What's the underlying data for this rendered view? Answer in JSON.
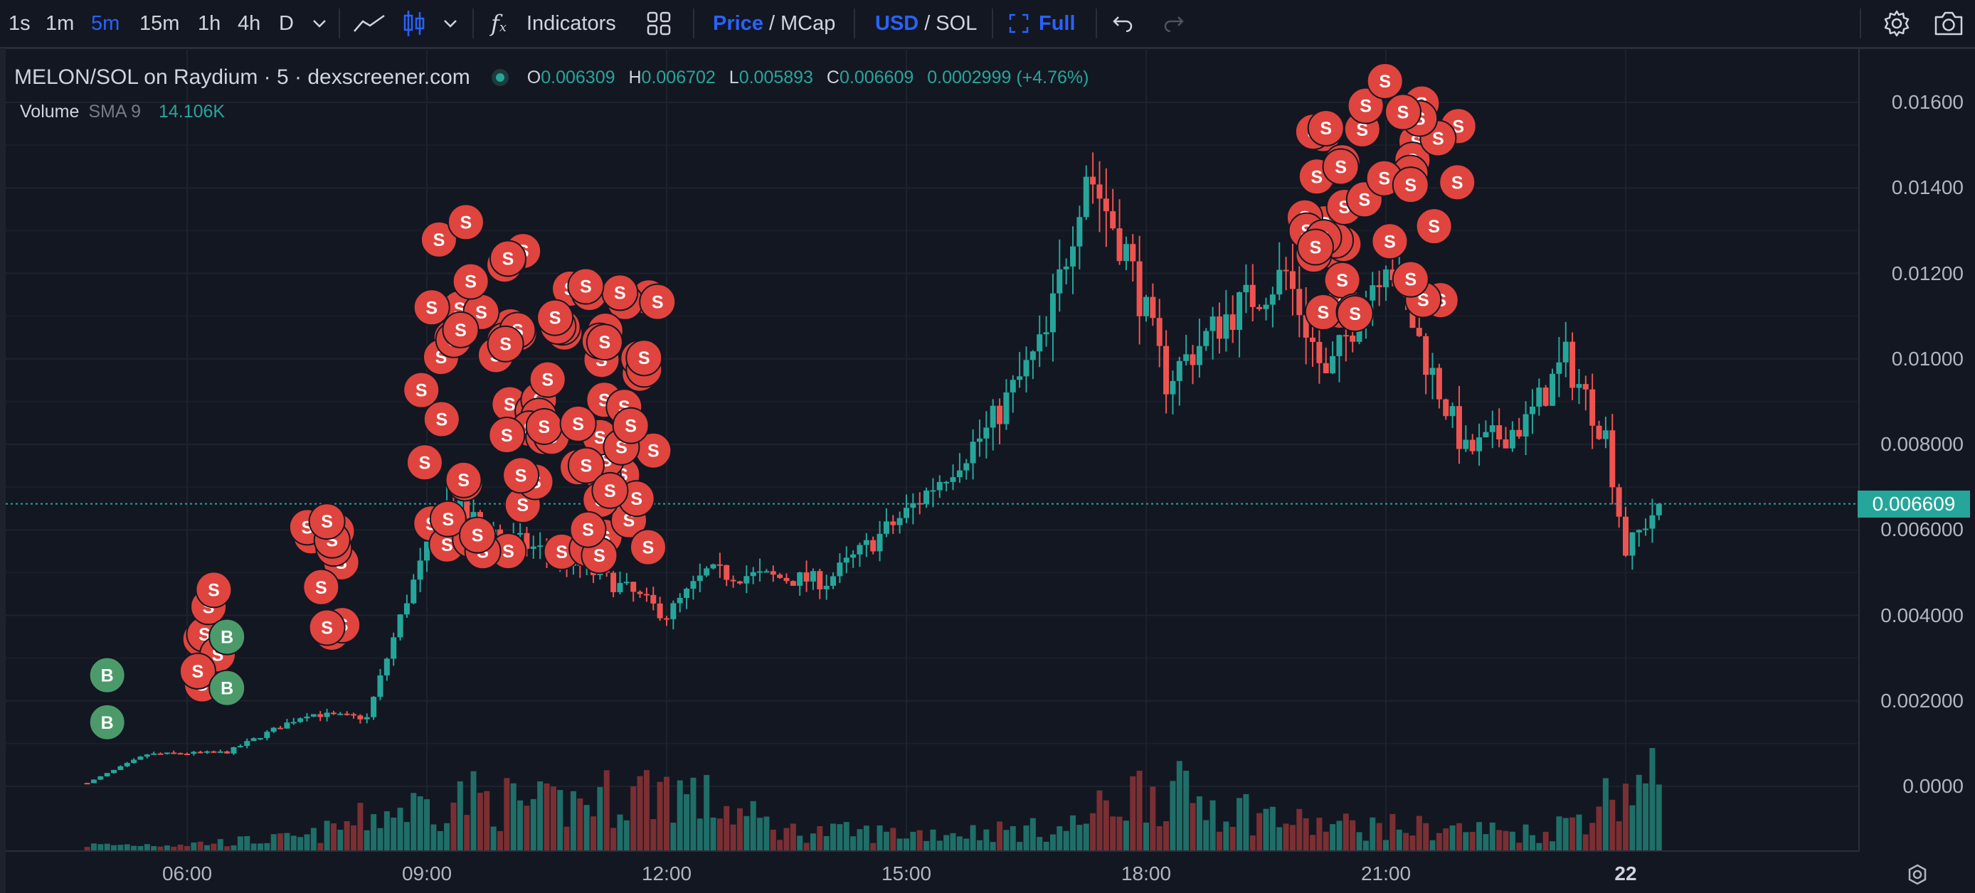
{
  "toolbar": {
    "intervals": [
      {
        "label": "1s",
        "active": false
      },
      {
        "label": "1m",
        "active": false
      },
      {
        "label": "5m",
        "active": true
      },
      {
        "label": "15m",
        "active": false
      },
      {
        "label": "1h",
        "active": false
      },
      {
        "label": "4h",
        "active": false
      },
      {
        "label": "D",
        "active": false
      }
    ],
    "indicators_label": "Indicators",
    "price_label": "Price",
    "mcap_label": "MCap",
    "usd_label": "USD",
    "sol_label": "SOL",
    "full_label": "Full",
    "slash": "/"
  },
  "legend": {
    "title": "MELON/SOL on Raydium · 5 · dexscreener.com",
    "open_key": "O",
    "open": "0.006309",
    "high_key": "H",
    "high": "0.006702",
    "low_key": "L",
    "low": "0.005893",
    "close_key": "C",
    "close": "0.006609",
    "change": "0.0002999 (+4.76%)",
    "volume_label": "Volume",
    "sma_label": "SMA 9",
    "volume_value": "14.106K"
  },
  "colors": {
    "background": "#131722",
    "up": "#26a69a",
    "down": "#ef5350",
    "sell_marker": "#e0443e",
    "buy_marker": "#4c9a6a",
    "accent": "#2962ff"
  },
  "price_axis": {
    "labels": [
      "0.01600",
      "0.01400",
      "0.01200",
      "0.01000",
      "0.008000",
      "0.006000",
      "0.004000",
      "0.002000",
      "0.0000"
    ],
    "last_price": "0.006609"
  },
  "time_axis": {
    "labels": [
      "06:00",
      "09:00",
      "12:00",
      "15:00",
      "18:00",
      "21:00",
      "22"
    ]
  },
  "markers": {
    "sell_letter": "S",
    "buy_letter": "B"
  },
  "chart_data": {
    "type": "candlestick",
    "symbol": "MELON/SOL",
    "interval": "5m",
    "ylim": [
      -0.0015,
      0.0172
    ],
    "x_range": [
      "04:30",
      "00:25"
    ],
    "approx_close_path": [
      {
        "t": "04:45",
        "price": 8e-05
      },
      {
        "t": "05:30",
        "price": 0.00075
      },
      {
        "t": "06:30",
        "price": 0.0008
      },
      {
        "t": "07:30",
        "price": 0.0017
      },
      {
        "t": "08:15",
        "price": 0.0016
      },
      {
        "t": "08:45",
        "price": 0.0044
      },
      {
        "t": "09:15",
        "price": 0.0066
      },
      {
        "t": "10:00",
        "price": 0.0058
      },
      {
        "t": "10:45",
        "price": 0.0053
      },
      {
        "t": "11:30",
        "price": 0.0046
      },
      {
        "t": "12:00",
        "price": 0.004
      },
      {
        "t": "12:30",
        "price": 0.005
      },
      {
        "t": "14:00",
        "price": 0.0048
      },
      {
        "t": "15:00",
        "price": 0.0064
      },
      {
        "t": "16:00",
        "price": 0.0083
      },
      {
        "t": "16:45",
        "price": 0.0105
      },
      {
        "t": "17:15",
        "price": 0.0145
      },
      {
        "t": "17:45",
        "price": 0.0125
      },
      {
        "t": "18:15",
        "price": 0.0095
      },
      {
        "t": "19:00",
        "price": 0.011
      },
      {
        "t": "19:45",
        "price": 0.012
      },
      {
        "t": "20:15",
        "price": 0.0095
      },
      {
        "t": "21:00",
        "price": 0.0125
      },
      {
        "t": "21:30",
        "price": 0.01
      },
      {
        "t": "22:00",
        "price": 0.0078
      },
      {
        "t": "22:45",
        "price": 0.0085
      },
      {
        "t": "23:15",
        "price": 0.01
      },
      {
        "t": "23:45",
        "price": 0.0082
      },
      {
        "t": "00:00",
        "price": 0.0055
      },
      {
        "t": "00:25",
        "price": 0.006609
      }
    ],
    "volume_profile": [
      {
        "t": "05:00",
        "volume": 0.00025
      },
      {
        "t": "06:00",
        "volume": 0.0003
      },
      {
        "t": "07:30",
        "volume": 0.0006
      },
      {
        "t": "08:30",
        "volume": 0.0018
      },
      {
        "t": "09:30",
        "volume": 0.0025
      },
      {
        "t": "10:30",
        "volume": 0.002
      },
      {
        "t": "12:00",
        "volume": 0.003
      },
      {
        "t": "13:30",
        "volume": 0.0009
      },
      {
        "t": "15:00",
        "volume": 0.0008
      },
      {
        "t": "17:00",
        "volume": 0.001
      },
      {
        "t": "18:00",
        "volume": 0.003
      },
      {
        "t": "20:00",
        "volume": 0.0012
      },
      {
        "t": "21:00",
        "volume": 0.0011
      },
      {
        "t": "22:00",
        "volume": 0.001
      },
      {
        "t": "23:00",
        "volume": 0.0008
      },
      {
        "t": "00:05",
        "volume": 0.0031
      }
    ],
    "buy_markers": [
      {
        "t": "05:00",
        "price": 0.0026
      },
      {
        "t": "05:00",
        "price": 0.0015
      },
      {
        "t": "06:30",
        "price": 0.0035
      },
      {
        "t": "06:30",
        "price": 0.0023
      }
    ],
    "sell_marker_clusters": [
      {
        "t": "06:20",
        "price_low": 0.0021,
        "price_high": 0.0046,
        "count": 6
      },
      {
        "t": "07:45",
        "price_low": 0.0034,
        "price_high": 0.0062,
        "count": 10
      },
      {
        "t": "09:40",
        "price_low": 0.0055,
        "price_high": 0.0132,
        "count": 40
      },
      {
        "t": "11:10",
        "price_low": 0.0052,
        "price_high": 0.0117,
        "count": 45
      },
      {
        "t": "20:15",
        "price_low": 0.0106,
        "price_high": 0.0154,
        "count": 18
      },
      {
        "t": "21:10",
        "price_low": 0.011,
        "price_high": 0.0165,
        "count": 22
      }
    ]
  }
}
